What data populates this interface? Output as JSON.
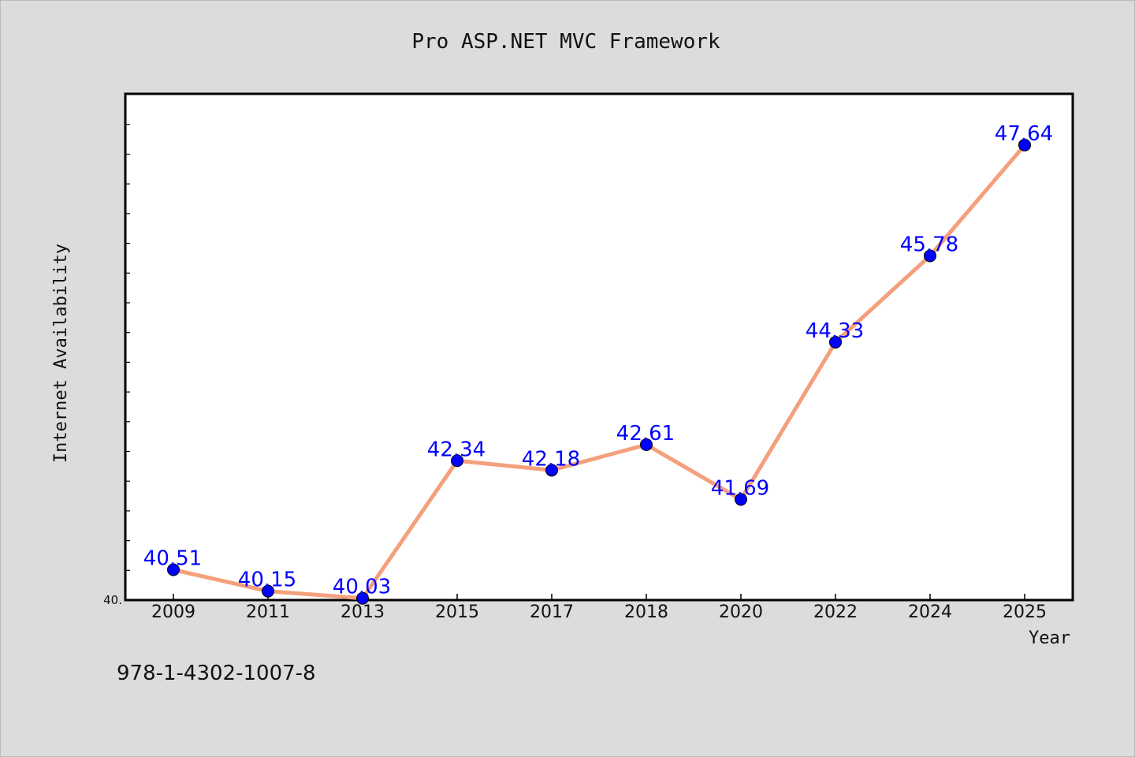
{
  "chart_data": {
    "type": "line",
    "title": "Pro ASP.NET MVC Framework",
    "xlabel": "Year",
    "ylabel": "Internet Availability",
    "categories": [
      "2009",
      "2011",
      "2013",
      "2015",
      "2017",
      "2018",
      "2020",
      "2022",
      "2024",
      "2025"
    ],
    "series": [
      {
        "values": [
          40.51,
          40.15,
          40.03,
          42.34,
          42.18,
          42.61,
          41.69,
          44.33,
          45.78,
          47.64
        ],
        "data_labels": [
          "40.51",
          "40.15",
          "40.03",
          "42.34",
          "42.18",
          "42.61",
          "41.69",
          "44.33",
          "45.78",
          "47.64"
        ],
        "line_color": "#f4a07c",
        "marker_color": "#0000ff"
      }
    ],
    "ylim": [
      40.0,
      48.5
    ],
    "y_tick_labels": [
      "40."
    ],
    "grid": false,
    "legend": false,
    "label_color": "#0000ff"
  },
  "footer_text": "978-1-4302-1007-8",
  "colors": {
    "background": "#dcdcdc",
    "plot_background": "#ffffff",
    "axis": "#000000"
  }
}
